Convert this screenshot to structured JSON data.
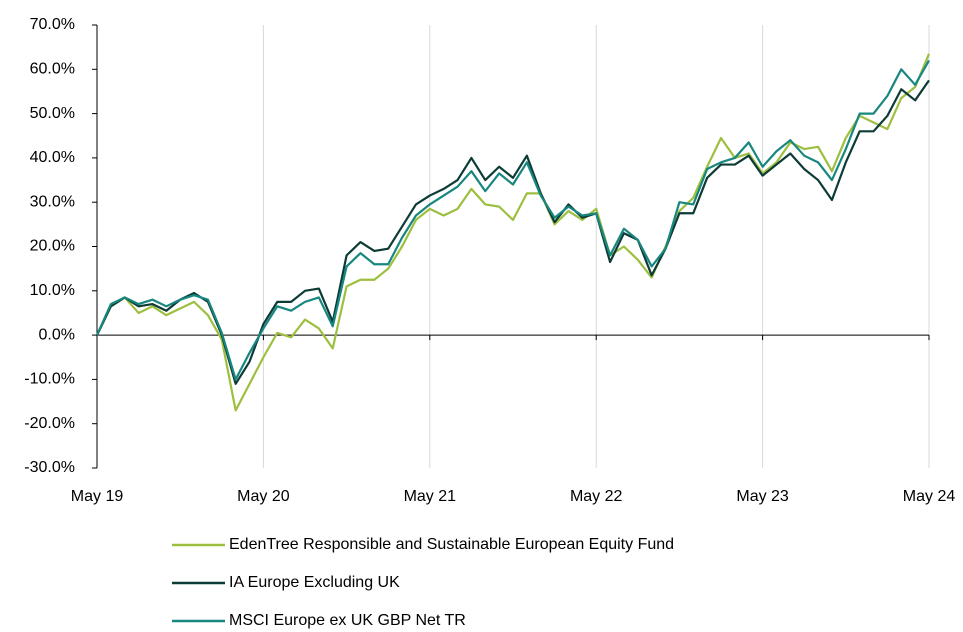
{
  "chart_data": {
    "type": "line",
    "categories": [
      "May 19",
      null,
      null,
      null,
      null,
      null,
      null,
      null,
      null,
      null,
      null,
      null,
      "May 20",
      null,
      null,
      null,
      null,
      null,
      null,
      null,
      null,
      null,
      null,
      null,
      "May 21",
      null,
      null,
      null,
      null,
      null,
      null,
      null,
      null,
      null,
      null,
      null,
      "May 22",
      null,
      null,
      null,
      null,
      null,
      null,
      null,
      null,
      null,
      null,
      null,
      "May 23",
      null,
      null,
      null,
      null,
      null,
      null,
      null,
      null,
      null,
      null,
      null,
      "May 24"
    ],
    "series": [
      {
        "name": "EdenTree Responsible and Sustainable European Equity Fund",
        "color": "#9dbf3f",
        "values": [
          0,
          6.5,
          8.5,
          5,
          6.5,
          4.5,
          6,
          7.5,
          4.5,
          -1,
          -17,
          -11,
          -5,
          0.5,
          -0.5,
          3.5,
          1.5,
          -3,
          11,
          12.5,
          12.5,
          15,
          20,
          26,
          28.5,
          27,
          28.5,
          33,
          29.5,
          29,
          26,
          32,
          32,
          25,
          28,
          26,
          28.5,
          18,
          20,
          17,
          13,
          20,
          28,
          31,
          38,
          44.5,
          40,
          41,
          36.5,
          39,
          43.5,
          42,
          42.5,
          37,
          44.5,
          49.5,
          48,
          46.5,
          53.5,
          56,
          63.5
        ]
      },
      {
        "name": "IA Europe Excluding UK",
        "color": "#0d3b36",
        "values": [
          0,
          6.5,
          8.5,
          6.5,
          7,
          5.5,
          8,
          9.5,
          7.5,
          0,
          -11,
          -6,
          2.5,
          7.5,
          7.5,
          10,
          10.5,
          3,
          18,
          21,
          19,
          19.5,
          24.5,
          29.5,
          31.5,
          33,
          35,
          40,
          35,
          38,
          35.5,
          40.5,
          32,
          25.5,
          29.5,
          26.5,
          27.5,
          16.5,
          23,
          21.5,
          13.5,
          19.5,
          27.5,
          27.5,
          35.5,
          38.5,
          38.5,
          40.5,
          36,
          38.5,
          41,
          37.5,
          35,
          30.5,
          39,
          46,
          46,
          49.5,
          55.5,
          53,
          57.5
        ]
      },
      {
        "name": "MSCI Europe ex UK GBP Net TR",
        "color": "#17877f",
        "values": [
          0,
          7,
          8.5,
          7,
          8,
          6.5,
          8,
          9,
          8,
          0.5,
          -10,
          -4,
          1.5,
          6.5,
          5.5,
          7.5,
          8.5,
          2,
          15.5,
          18.5,
          16,
          16,
          22,
          27,
          29.5,
          31.5,
          33.5,
          37,
          32.5,
          36.5,
          34,
          39,
          31.5,
          26.5,
          29,
          27,
          27.5,
          18,
          24,
          21.5,
          15.5,
          19.5,
          30,
          29.5,
          37.5,
          39,
          40,
          43.5,
          38,
          41.5,
          44,
          40.5,
          39,
          35,
          42,
          50,
          50,
          54,
          60,
          56.5,
          62
        ]
      }
    ],
    "ylim": [
      -30,
      70
    ],
    "yticks": [
      {
        "value": -30,
        "label": "-30.0%"
      },
      {
        "value": -20,
        "label": "-20.0%"
      },
      {
        "value": -10,
        "label": "-10.0%"
      },
      {
        "value": 0,
        "label": "0.0%"
      },
      {
        "value": 10,
        "label": "10.0%"
      },
      {
        "value": 20,
        "label": "20.0%"
      },
      {
        "value": 30,
        "label": "30.0%"
      },
      {
        "value": 40,
        "label": "40.0%"
      },
      {
        "value": 50,
        "label": "50.0%"
      },
      {
        "value": 60,
        "label": "60.0%"
      },
      {
        "value": 70,
        "label": "70.0%"
      }
    ],
    "grid": true,
    "legend": "bottom"
  }
}
